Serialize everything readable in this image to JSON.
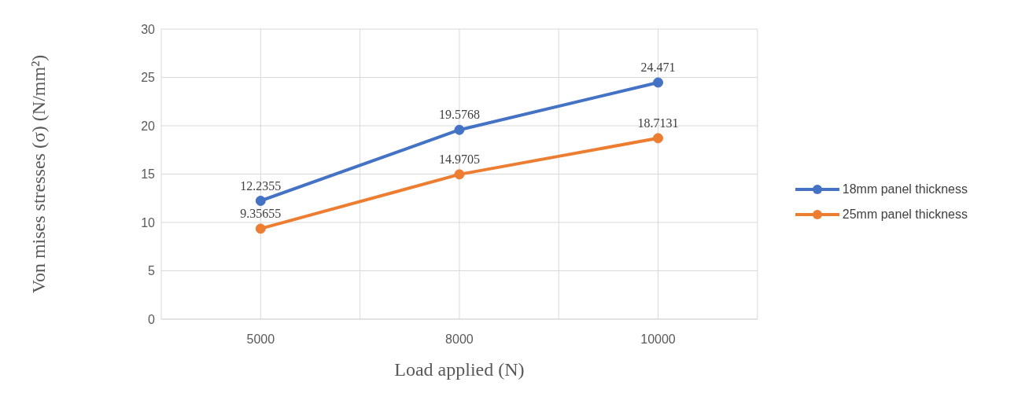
{
  "chart_data": {
    "type": "line",
    "xlabel": "Load applied (N)",
    "ylabel": "Von mises stresses (σ) (N/mm²)",
    "categories": [
      "5000",
      "8000",
      "10000"
    ],
    "series": [
      {
        "name": "18mm panel thickness",
        "color": "#4472c4",
        "values": [
          12.2355,
          19.5768,
          24.471
        ]
      },
      {
        "name": "25mm panel thickness",
        "color": "#ed7d31",
        "values": [
          9.35655,
          14.9705,
          18.7131
        ]
      }
    ],
    "ylim": [
      0,
      30
    ],
    "yticks": [
      0,
      5,
      10,
      15,
      20,
      25,
      30
    ],
    "grid": true,
    "legend": "right",
    "marker": "circle",
    "data_labels": true
  }
}
